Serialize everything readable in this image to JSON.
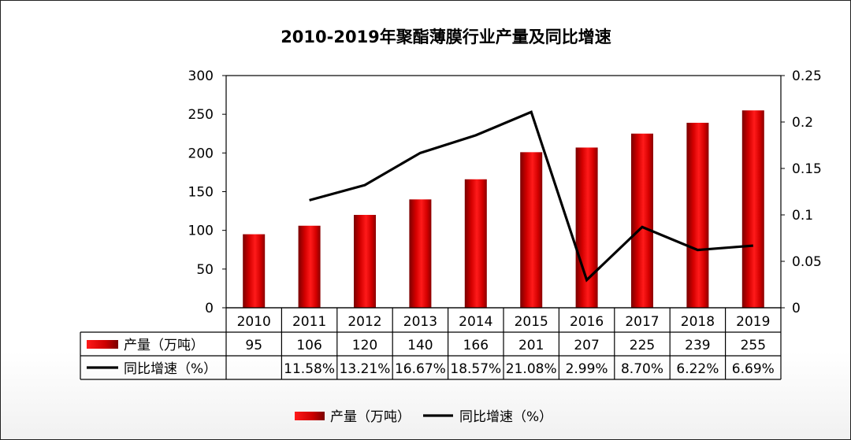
{
  "chart_data": {
    "type": "bar",
    "title": "2010-2019年聚酯薄膜行业产量及同比增速",
    "categories": [
      "2010",
      "2011",
      "2012",
      "2013",
      "2014",
      "2015",
      "2016",
      "2017",
      "2018",
      "2019"
    ],
    "series": [
      {
        "name": "产量（万吨）",
        "type": "bar",
        "axis": "left",
        "color": "#cc0000",
        "values": [
          95,
          106,
          120,
          140,
          166,
          201,
          207,
          225,
          239,
          255
        ],
        "table_labels": [
          "95",
          "106",
          "120",
          "140",
          "166",
          "201",
          "207",
          "225",
          "239",
          "255"
        ]
      },
      {
        "name": "同比增速（%）",
        "type": "line",
        "axis": "right",
        "color": "#000000",
        "values": [
          null,
          0.1158,
          0.1321,
          0.1667,
          0.1857,
          0.2108,
          0.0299,
          0.087,
          0.0622,
          0.0669
        ],
        "table_labels": [
          "",
          "11.58%",
          "13.21%",
          "16.67%",
          "18.57%",
          "21.08%",
          "2.99%",
          "8.70%",
          "6.22%",
          "6.69%"
        ]
      }
    ],
    "y_left": {
      "min": 0,
      "max": 300,
      "ticks": [
        "0",
        "50",
        "100",
        "150",
        "200",
        "250",
        "300"
      ]
    },
    "y_right": {
      "min": 0,
      "max": 0.25,
      "ticks": [
        "0",
        "0.05",
        "0.1",
        "0.15",
        "0.2",
        "0.25"
      ]
    },
    "grid": false,
    "legend_position": "bottom-center",
    "data_table": true
  }
}
